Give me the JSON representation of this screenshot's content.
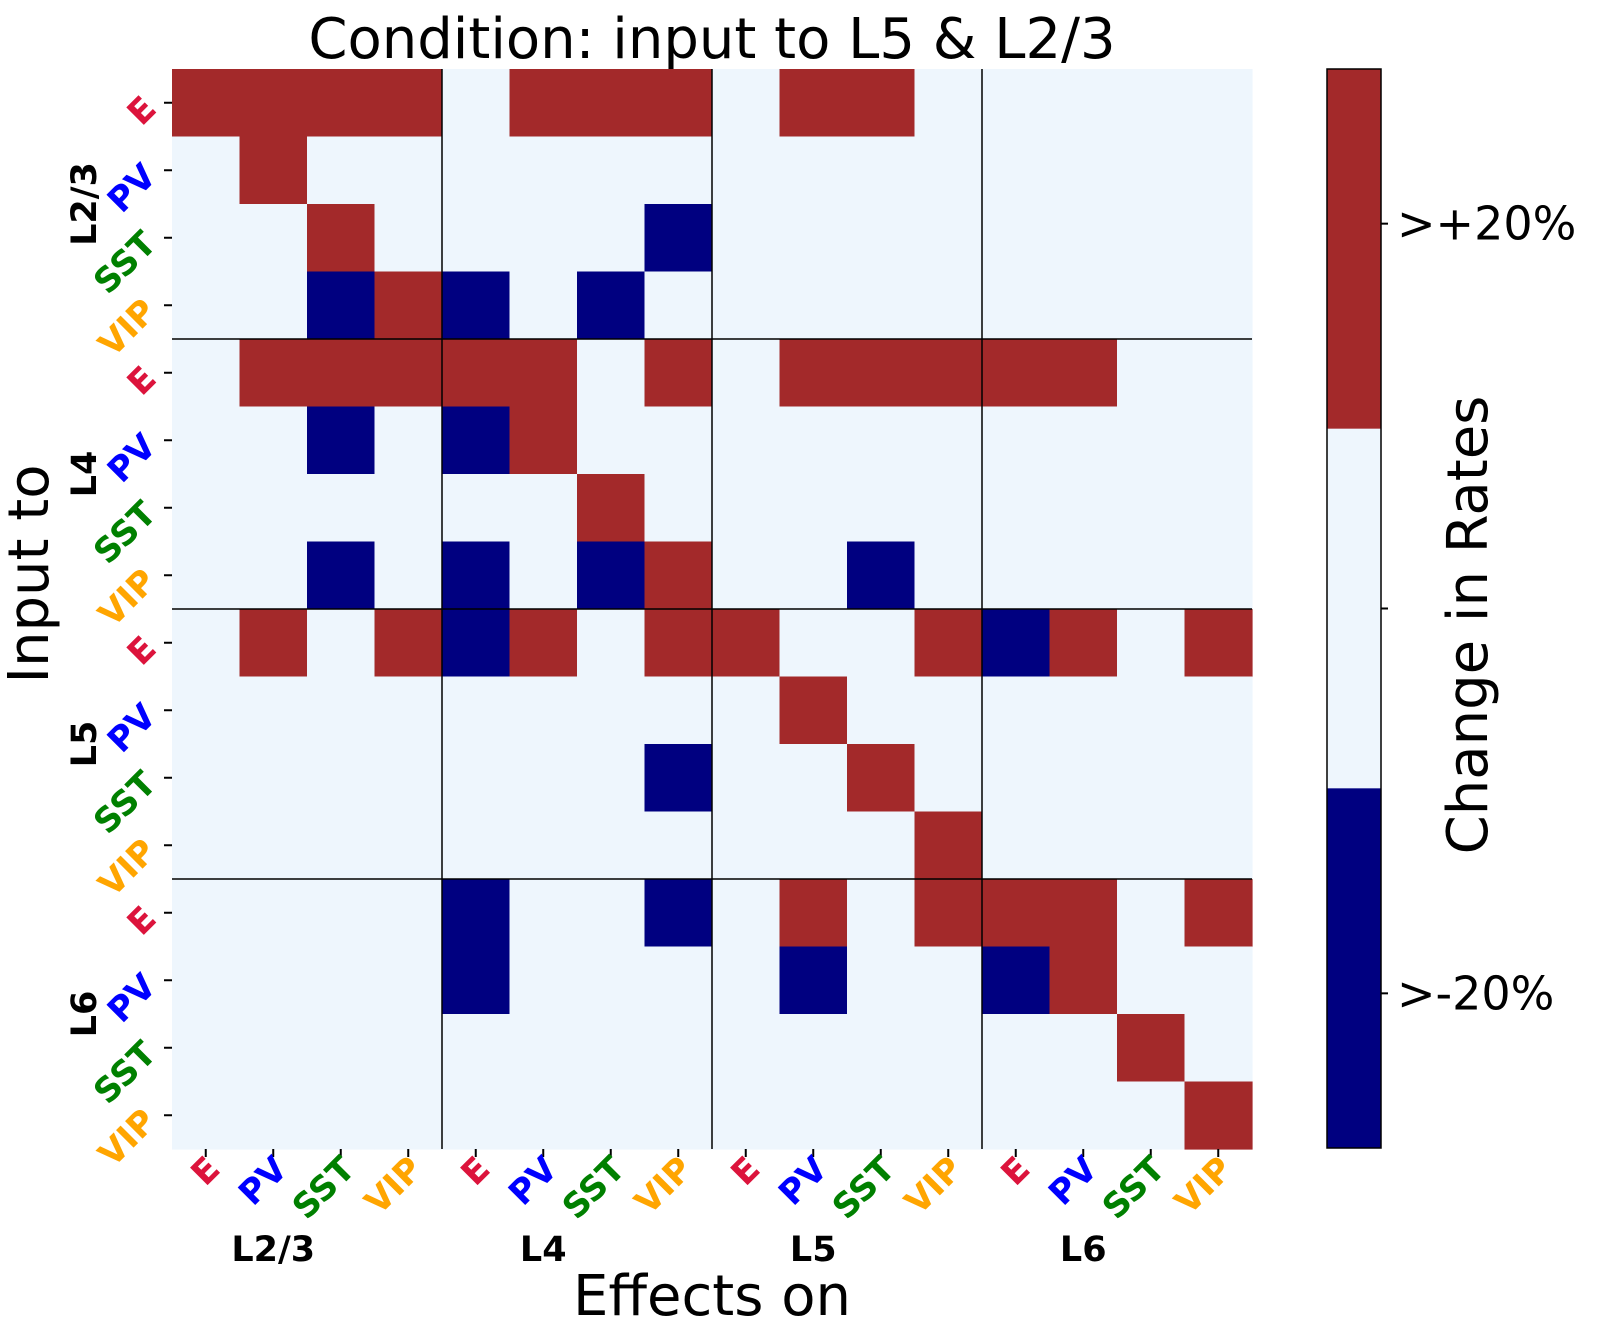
{
  "chart_data": {
    "type": "heatmap",
    "title": "Condition: input to L5 & L2/3",
    "xlabel": "Effects on",
    "ylabel": "Input to",
    "colorbar": {
      "label": "Change in Rates",
      "ticks": [
        ">+20%",
        ">-20%"
      ],
      "levels": [
        -1,
        0,
        1
      ],
      "colors": {
        "-1": "#000080",
        "0": "#eef6fd",
        "1": "#a3292a"
      }
    },
    "layers": [
      "L2/3",
      "L4",
      "L5",
      "L6"
    ],
    "cell_types": [
      "E",
      "PV",
      "SST",
      "VIP"
    ],
    "cell_type_colors": {
      "E": "#dc143c",
      "PV": "#0000ff",
      "SST": "#008000",
      "VIP": "#ffa500"
    },
    "matrix": [
      [
        1,
        1,
        1,
        1,
        0,
        1,
        1,
        1,
        0,
        1,
        1,
        0,
        0,
        0,
        0,
        0
      ],
      [
        0,
        1,
        0,
        0,
        0,
        0,
        0,
        0,
        0,
        0,
        0,
        0,
        0,
        0,
        0,
        0
      ],
      [
        0,
        0,
        1,
        0,
        0,
        0,
        0,
        -1,
        0,
        0,
        0,
        0,
        0,
        0,
        0,
        0
      ],
      [
        0,
        0,
        -1,
        1,
        -1,
        0,
        -1,
        0,
        0,
        0,
        0,
        0,
        0,
        0,
        0,
        0
      ],
      [
        0,
        1,
        1,
        1,
        1,
        1,
        0,
        1,
        0,
        1,
        1,
        1,
        1,
        1,
        0,
        0
      ],
      [
        0,
        0,
        -1,
        0,
        -1,
        1,
        0,
        0,
        0,
        0,
        0,
        0,
        0,
        0,
        0,
        0
      ],
      [
        0,
        0,
        0,
        0,
        0,
        0,
        1,
        0,
        0,
        0,
        0,
        0,
        0,
        0,
        0,
        0
      ],
      [
        0,
        0,
        -1,
        0,
        -1,
        0,
        -1,
        1,
        0,
        0,
        -1,
        0,
        0,
        0,
        0,
        0
      ],
      [
        0,
        1,
        0,
        1,
        -1,
        1,
        0,
        1,
        1,
        0,
        0,
        1,
        -1,
        1,
        0,
        1
      ],
      [
        0,
        0,
        0,
        0,
        0,
        0,
        0,
        0,
        0,
        1,
        0,
        0,
        0,
        0,
        0,
        0
      ],
      [
        0,
        0,
        0,
        0,
        0,
        0,
        0,
        -1,
        0,
        0,
        1,
        0,
        0,
        0,
        0,
        0
      ],
      [
        0,
        0,
        0,
        0,
        0,
        0,
        0,
        0,
        0,
        0,
        0,
        1,
        0,
        0,
        0,
        0
      ],
      [
        0,
        0,
        0,
        0,
        -1,
        0,
        0,
        -1,
        0,
        1,
        0,
        1,
        1,
        1,
        0,
        1
      ],
      [
        0,
        0,
        0,
        0,
        -1,
        0,
        0,
        0,
        0,
        -1,
        0,
        0,
        -1,
        1,
        0,
        0
      ],
      [
        0,
        0,
        0,
        0,
        0,
        0,
        0,
        0,
        0,
        0,
        0,
        0,
        0,
        0,
        1,
        0
      ],
      [
        0,
        0,
        0,
        0,
        0,
        0,
        0,
        0,
        0,
        0,
        0,
        0,
        0,
        0,
        0,
        1
      ]
    ]
  }
}
